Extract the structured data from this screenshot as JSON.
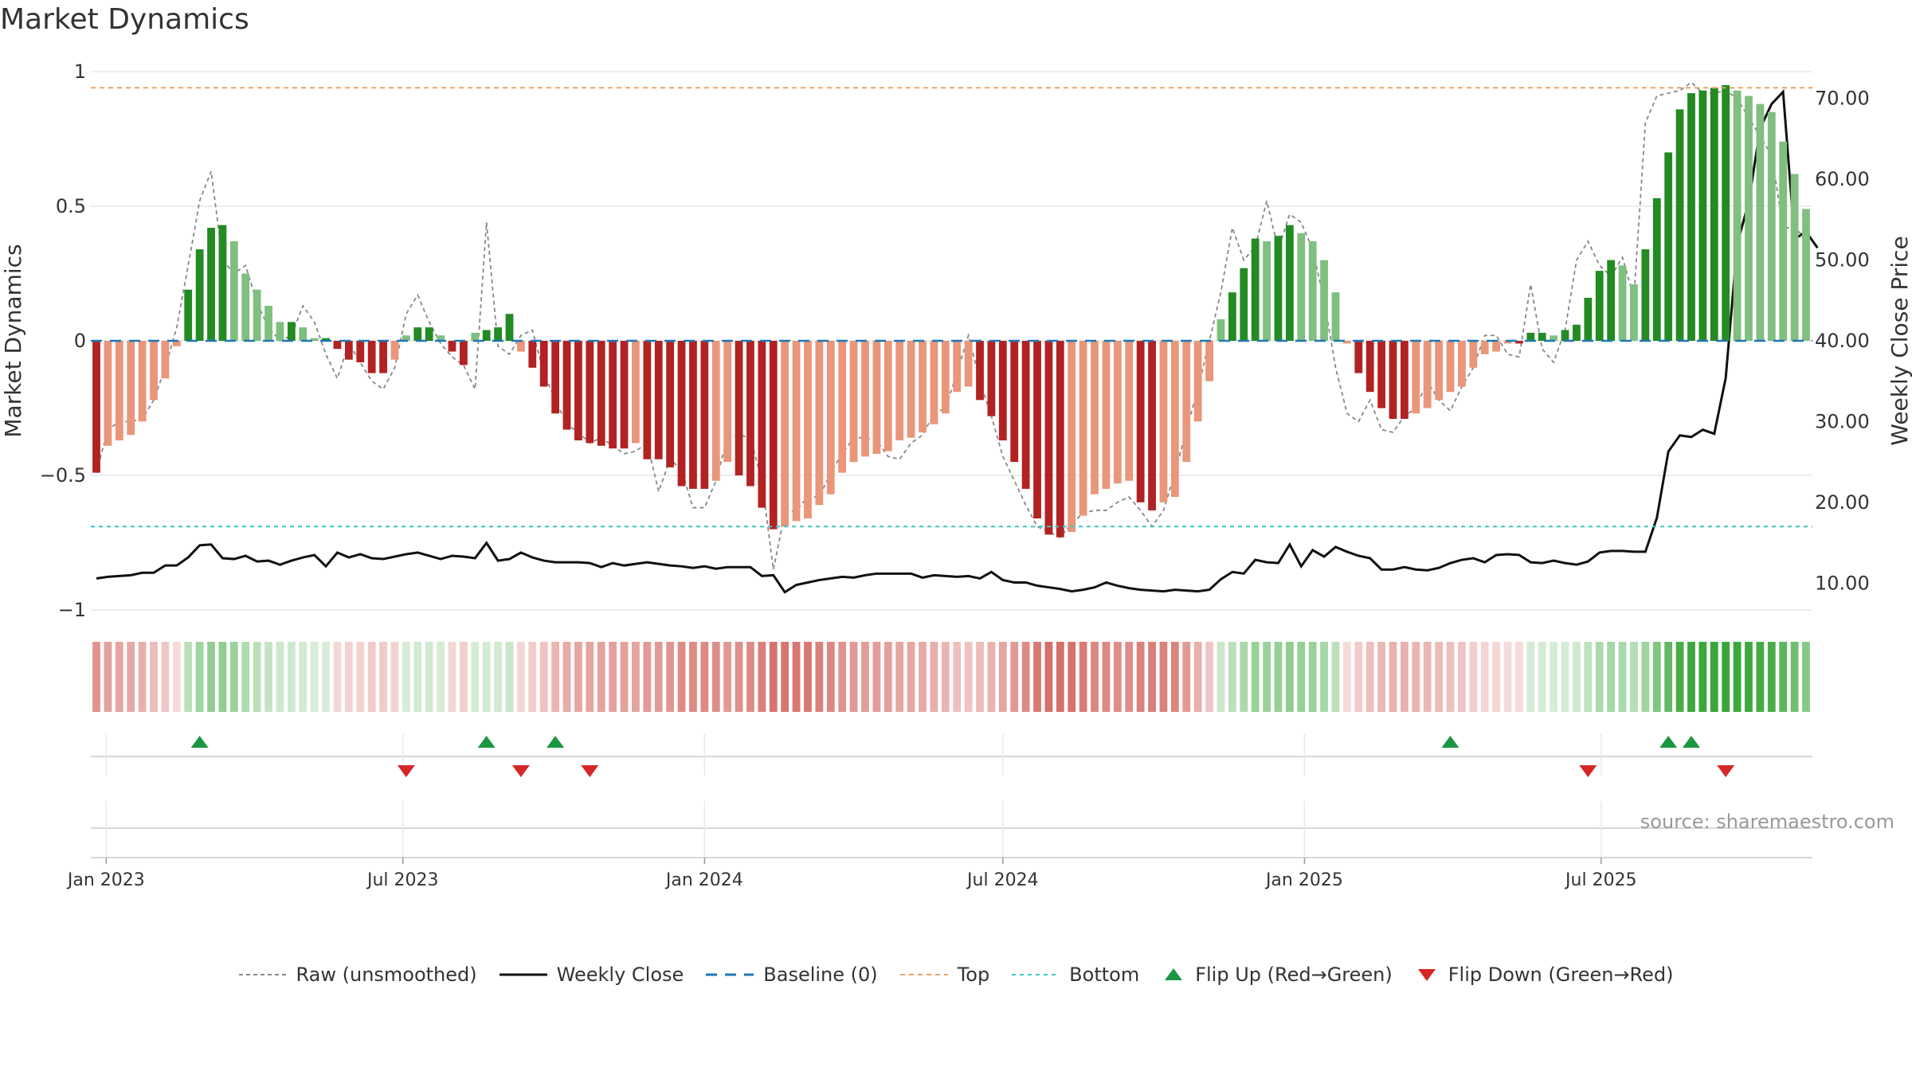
{
  "title": "Market Dynamics",
  "source_text": "source: sharemaestro.com",
  "colors": {
    "strong_red": "#b22222",
    "light_red": "#e9967a",
    "strong_green": "#228b22",
    "light_green": "#7fbf7f",
    "weekly_close": "#111111",
    "raw": "#888888",
    "baseline": "#1f77b4",
    "top": "#e8a565",
    "bottom": "#3cc6cc",
    "flip_up": "#1a9641",
    "flip_down": "#d62728"
  },
  "legend": [
    {
      "key": "raw",
      "label": "Raw (unsmoothed)"
    },
    {
      "key": "close",
      "label": "Weekly Close"
    },
    {
      "key": "baseline",
      "label": "Baseline (0)"
    },
    {
      "key": "top",
      "label": "Top"
    },
    {
      "key": "bottom",
      "label": "Bottom"
    },
    {
      "key": "flip_up",
      "label": "Flip Up (Red→Green)"
    },
    {
      "key": "flip_down",
      "label": "Flip Down (Green→Red)"
    }
  ],
  "chart_data": {
    "type": "bar",
    "start_date": "2022-12-26",
    "y_left_label": "Market Dynamics",
    "y_right_label": "Weekly Close Price",
    "y_left_ticks": [
      "1",
      "0.5",
      "0",
      "−0.5",
      "−1"
    ],
    "y_right_ticks": [
      "70.00",
      "60.00",
      "50.00",
      "40.00",
      "30.00",
      "20.00",
      "10.00"
    ],
    "x_ticks": [
      "Jan 2023",
      "Jul 2023",
      "Jan 2024",
      "Jul 2024",
      "Jan 2025",
      "Jul 2025"
    ],
    "ylim_left": [
      -1,
      1
    ],
    "ylim_right": [
      7,
      73
    ],
    "top_line": 0.94,
    "bottom_line": -0.69,
    "baseline": 0,
    "momentum": [
      -0.49,
      -0.39,
      -0.37,
      -0.35,
      -0.3,
      -0.22,
      -0.14,
      -0.02,
      0.19,
      0.34,
      0.42,
      0.43,
      0.37,
      0.25,
      0.19,
      0.13,
      0.07,
      0.07,
      0.05,
      0.01,
      0.01,
      -0.03,
      -0.07,
      -0.08,
      -0.12,
      -0.12,
      -0.07,
      0.02,
      0.05,
      0.05,
      0.02,
      -0.04,
      -0.09,
      0.03,
      0.04,
      0.05,
      0.1,
      -0.04,
      -0.1,
      -0.17,
      -0.27,
      -0.33,
      -0.37,
      -0.38,
      -0.39,
      -0.4,
      -0.4,
      -0.38,
      -0.44,
      -0.44,
      -0.47,
      -0.54,
      -0.55,
      -0.55,
      -0.52,
      -0.45,
      -0.5,
      -0.54,
      -0.62,
      -0.7,
      -0.69,
      -0.67,
      -0.66,
      -0.61,
      -0.57,
      -0.49,
      -0.45,
      -0.43,
      -0.42,
      -0.41,
      -0.37,
      -0.36,
      -0.34,
      -0.31,
      -0.27,
      -0.19,
      -0.17,
      -0.22,
      -0.28,
      -0.37,
      -0.45,
      -0.55,
      -0.66,
      -0.72,
      -0.73,
      -0.71,
      -0.65,
      -0.57,
      -0.55,
      -0.53,
      -0.52,
      -0.6,
      -0.63,
      -0.6,
      -0.58,
      -0.45,
      -0.3,
      -0.15,
      0.08,
      0.18,
      0.27,
      0.38,
      0.37,
      0.39,
      0.43,
      0.4,
      0.37,
      0.3,
      0.18,
      -0.01,
      -0.12,
      -0.19,
      -0.25,
      -0.29,
      -0.29,
      -0.27,
      -0.25,
      -0.22,
      -0.19,
      -0.17,
      -0.1,
      -0.05,
      -0.04,
      -0.01,
      -0.01,
      0.03,
      0.03,
      0.02,
      0.04,
      0.06,
      0.16,
      0.26,
      0.3,
      0.28,
      0.21,
      0.34,
      0.53,
      0.7,
      0.86,
      0.92,
      0.93,
      0.94,
      0.95,
      0.93,
      0.91,
      0.88,
      0.85,
      0.74,
      0.62,
      0.49
    ],
    "raw": [
      -0.49,
      -0.33,
      -0.3,
      -0.3,
      -0.29,
      -0.22,
      -0.1,
      0.05,
      0.28,
      0.52,
      0.63,
      0.3,
      0.25,
      0.28,
      0.14,
      0.05,
      0.0,
      0.02,
      0.13,
      0.07,
      -0.05,
      -0.14,
      -0.01,
      -0.08,
      -0.15,
      -0.18,
      -0.1,
      0.1,
      0.17,
      0.07,
      -0.01,
      -0.06,
      -0.09,
      -0.18,
      0.44,
      -0.02,
      -0.05,
      0.02,
      0.04,
      -0.12,
      -0.22,
      -0.31,
      -0.34,
      -0.38,
      -0.36,
      -0.39,
      -0.42,
      -0.41,
      -0.38,
      -0.56,
      -0.44,
      -0.48,
      -0.62,
      -0.62,
      -0.52,
      -0.36,
      -0.35,
      -0.36,
      -0.52,
      -0.85,
      -0.64,
      -0.63,
      -0.58,
      -0.58,
      -0.49,
      -0.42,
      -0.36,
      -0.36,
      -0.37,
      -0.43,
      -0.44,
      -0.38,
      -0.35,
      -0.27,
      -0.25,
      -0.12,
      0.02,
      -0.15,
      -0.28,
      -0.43,
      -0.52,
      -0.61,
      -0.69,
      -0.71,
      -0.73,
      -0.68,
      -0.64,
      -0.63,
      -0.63,
      -0.6,
      -0.58,
      -0.63,
      -0.69,
      -0.63,
      -0.49,
      -0.33,
      -0.18,
      0.0,
      0.18,
      0.42,
      0.3,
      0.35,
      0.52,
      0.34,
      0.47,
      0.44,
      0.34,
      0.15,
      -0.1,
      -0.27,
      -0.3,
      -0.22,
      -0.33,
      -0.34,
      -0.28,
      -0.25,
      -0.15,
      -0.22,
      -0.26,
      -0.17,
      -0.1,
      0.02,
      0.02,
      -0.05,
      -0.06,
      0.21,
      -0.03,
      -0.08,
      0.04,
      0.3,
      0.37,
      0.28,
      0.24,
      0.31,
      0.16,
      0.81,
      0.91,
      0.92,
      0.93,
      0.96,
      0.92,
      0.92,
      0.93,
      0.9,
      0.83,
      0.76,
      0.69,
      0.42,
      0.42,
      0.38
    ],
    "close": [
      10.6,
      10.8,
      10.9,
      11.0,
      11.3,
      11.3,
      12.2,
      12.2,
      13.2,
      14.7,
      14.8,
      13.1,
      13.0,
      13.4,
      12.7,
      12.8,
      12.3,
      12.8,
      13.2,
      13.5,
      12.1,
      13.8,
      13.2,
      13.6,
      13.1,
      13.0,
      13.3,
      13.6,
      13.8,
      13.4,
      13.0,
      13.4,
      13.3,
      13.1,
      15.0,
      12.8,
      13.0,
      13.8,
      13.2,
      12.8,
      12.6,
      12.6,
      12.6,
      12.5,
      12.0,
      12.5,
      12.2,
      12.4,
      12.6,
      12.4,
      12.2,
      12.1,
      11.9,
      12.1,
      11.8,
      12.0,
      12.0,
      12.0,
      10.9,
      11.0,
      8.9,
      9.8,
      10.1,
      10.4,
      10.6,
      10.8,
      10.7,
      11.0,
      11.2,
      11.2,
      11.2,
      11.2,
      10.7,
      11.0,
      10.9,
      10.8,
      10.9,
      10.6,
      11.4,
      10.4,
      10.1,
      10.1,
      9.7,
      9.5,
      9.3,
      9.0,
      9.2,
      9.5,
      10.1,
      9.7,
      9.4,
      9.2,
      9.1,
      9.0,
      9.2,
      9.1,
      9.0,
      9.2,
      10.5,
      11.4,
      11.2,
      12.9,
      12.6,
      12.5,
      14.8,
      12.1,
      14.1,
      13.3,
      14.5,
      13.9,
      13.4,
      13.1,
      11.7,
      11.7,
      12.0,
      11.7,
      11.6,
      11.9,
      12.5,
      12.9,
      13.1,
      12.6,
      13.5,
      13.6,
      13.5,
      12.6,
      12.5,
      12.8,
      12.5,
      12.3,
      12.7,
      13.8,
      14.0,
      14.0,
      13.9,
      13.9,
      18.1,
      26.3,
      28.3,
      28.1,
      29.0,
      28.5,
      35.4,
      52.0,
      57.1,
      66.3,
      69.3,
      70.8,
      52.6,
      53.5,
      51.5
    ],
    "flip_up_weeks": [
      9,
      34,
      40,
      118,
      137,
      139
    ],
    "flip_down_weeks": [
      27,
      37,
      43,
      130,
      142
    ],
    "week_color_ticks": [
      "Jan 2023",
      "Jul 2023",
      "Jan 2024",
      "Jul 2024",
      "Jan 2025",
      "Jul 2025"
    ]
  }
}
